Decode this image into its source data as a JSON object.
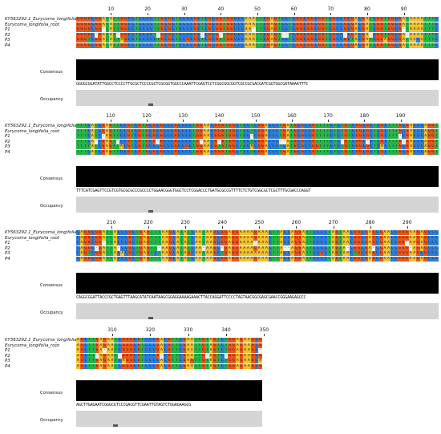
{
  "colors": {
    "A": "#f2c12e",
    "C": "#2e7dd7",
    "G": "#e8561b",
    "T": "#27b34a"
  },
  "sequence_labels": [
    "KY563292.1_Eurycoma_longifolia",
    "Eurycoma_longifolia_root",
    "P1",
    "P2",
    "P3",
    "P4"
  ],
  "track_labels": {
    "consensus": "Consensus",
    "occupancy": "Occupancy"
  },
  "blocks": [
    {
      "ruler": [
        "10",
        "20",
        "30",
        "40",
        "50",
        "60",
        "70",
        "80",
        "90"
      ],
      "consensus": "GGGGCGGATATTGGCCTCCCCTTGCGCTCCCCGCTCGCGGTGGCCCAAATTCGAGTCCTCGGCGGCGGTCGCCGCGACGATCGGTGGCGATAAAATTTC"
    },
    {
      "ruler": [
        "110",
        "120",
        "130",
        "140",
        "150",
        "160",
        "170",
        "180",
        "190"
      ],
      "consensus": "TTTCATCGAGTTCCGTCGTGCGCGCCCGCCCCTGGAACGGGTGGCTCCTCGGACCCTGATGCGCCGTTTTCTCTGTCGGCGCTCGCTTTGCGACCCAGGT"
    },
    {
      "ruler": [
        "210",
        "220",
        "230",
        "240",
        "250",
        "260",
        "270",
        "280",
        "290"
      ],
      "consensus": "CAGGCGGATTACCCGCTGAGTTTAAGCATATCAATAAGCGGAGGAAAAGAAACTTACCAGGATTCCCCTAGTAACGGCGAGCGAACCGGGAAGAGCCC"
    },
    {
      "ruler": [
        "310",
        "320",
        "330",
        "340",
        "350"
      ],
      "consensus": "AGCTTGAGAATCGGGCGTCCCGACGTTCGAATTGTAGTCTGGAGAAGCG"
    }
  ]
}
